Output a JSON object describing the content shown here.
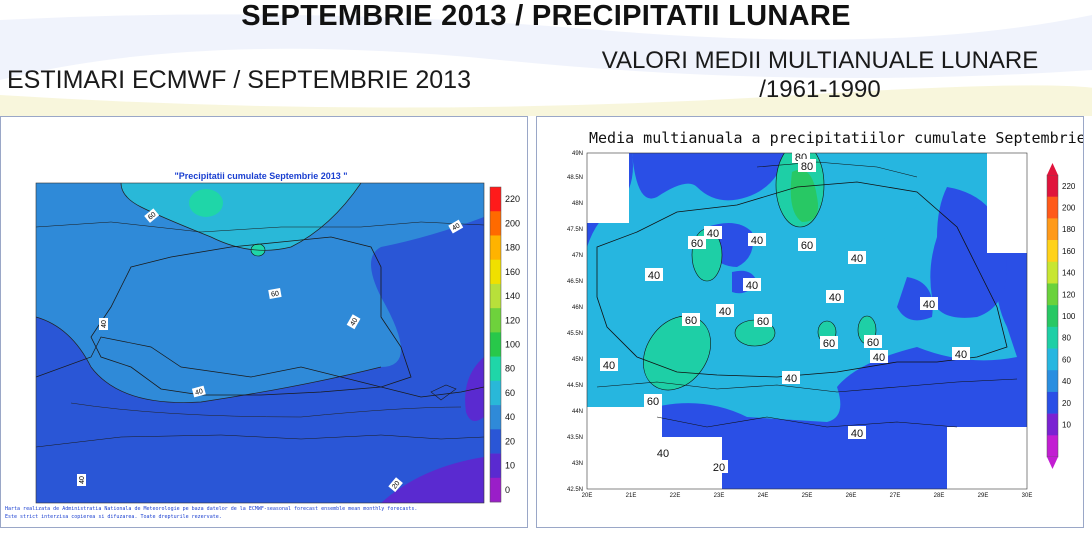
{
  "header": {
    "title": "SEPTEMBRIE 2013 / PRECIPITATII LUNARE",
    "left_subtitle": "ESTIMARI ECMWF / SEPTEMBRIE 2013",
    "right_subtitle_line1": "VALORI MEDII MULTIANUALE LUNARE",
    "right_subtitle_line2": "/1961-1990"
  },
  "left_map": {
    "title": "\"Precipitatii cumulate Septembrie 2013 \"",
    "contour_labels": [
      "60",
      "60",
      "40",
      "40",
      "40",
      "40",
      "40",
      "40",
      "20"
    ],
    "colorbar_ticks": [
      "220",
      "200",
      "180",
      "160",
      "140",
      "120",
      "100",
      "80",
      "60",
      "40",
      "20",
      "10",
      "0"
    ],
    "colorbar_colors": [
      "#ff1a1a",
      "#ff6a00",
      "#ffb300",
      "#f0e000",
      "#b8e03a",
      "#6ed23c",
      "#28c84a",
      "#1fd6a8",
      "#29b8d8",
      "#2f8ad8",
      "#2a56d6",
      "#5a2ad0",
      "#9a1ec8"
    ],
    "footer_line1": "Harta realizata de Administratia Nationala de Meteorologie pe baza datelor de la ECMWF-seasonal forecast ensemble mean monthly forecasts.",
    "footer_line2": "Este strict interzisa copierea si difuzarea. Toate drepturile rezervate."
  },
  "right_map": {
    "title": "Media multianuala a precipitatiilor cumulate Septembrie",
    "lat_labels": [
      "49N",
      "48.5N",
      "48N",
      "47.5N",
      "47N",
      "46.5N",
      "46N",
      "45.5N",
      "45N",
      "44.5N",
      "44N",
      "43.5N",
      "43N",
      "42.5N"
    ],
    "lon_labels": [
      "20E",
      "21E",
      "22E",
      "23E",
      "24E",
      "25E",
      "26E",
      "27E",
      "28E",
      "29E",
      "30E"
    ],
    "contour_labels": [
      "80",
      "80",
      "60",
      "40",
      "40",
      "60",
      "40",
      "40",
      "40",
      "40",
      "40",
      "60",
      "40",
      "60",
      "60",
      "60",
      "40",
      "40",
      "60",
      "40",
      "40",
      "40",
      "20"
    ],
    "colorbar_ticks": [
      "220",
      "200",
      "180",
      "160",
      "140",
      "120",
      "100",
      "80",
      "60",
      "40",
      "20",
      "10"
    ],
    "colorbar_colors": [
      "#e0143c",
      "#ff5a1a",
      "#ff9a1a",
      "#ffd21a",
      "#c8e632",
      "#6ad23c",
      "#28c864",
      "#1ecfa6",
      "#26b6e0",
      "#2a8ee0",
      "#2a4fe6",
      "#7a22d2",
      "#c21ed2"
    ]
  }
}
